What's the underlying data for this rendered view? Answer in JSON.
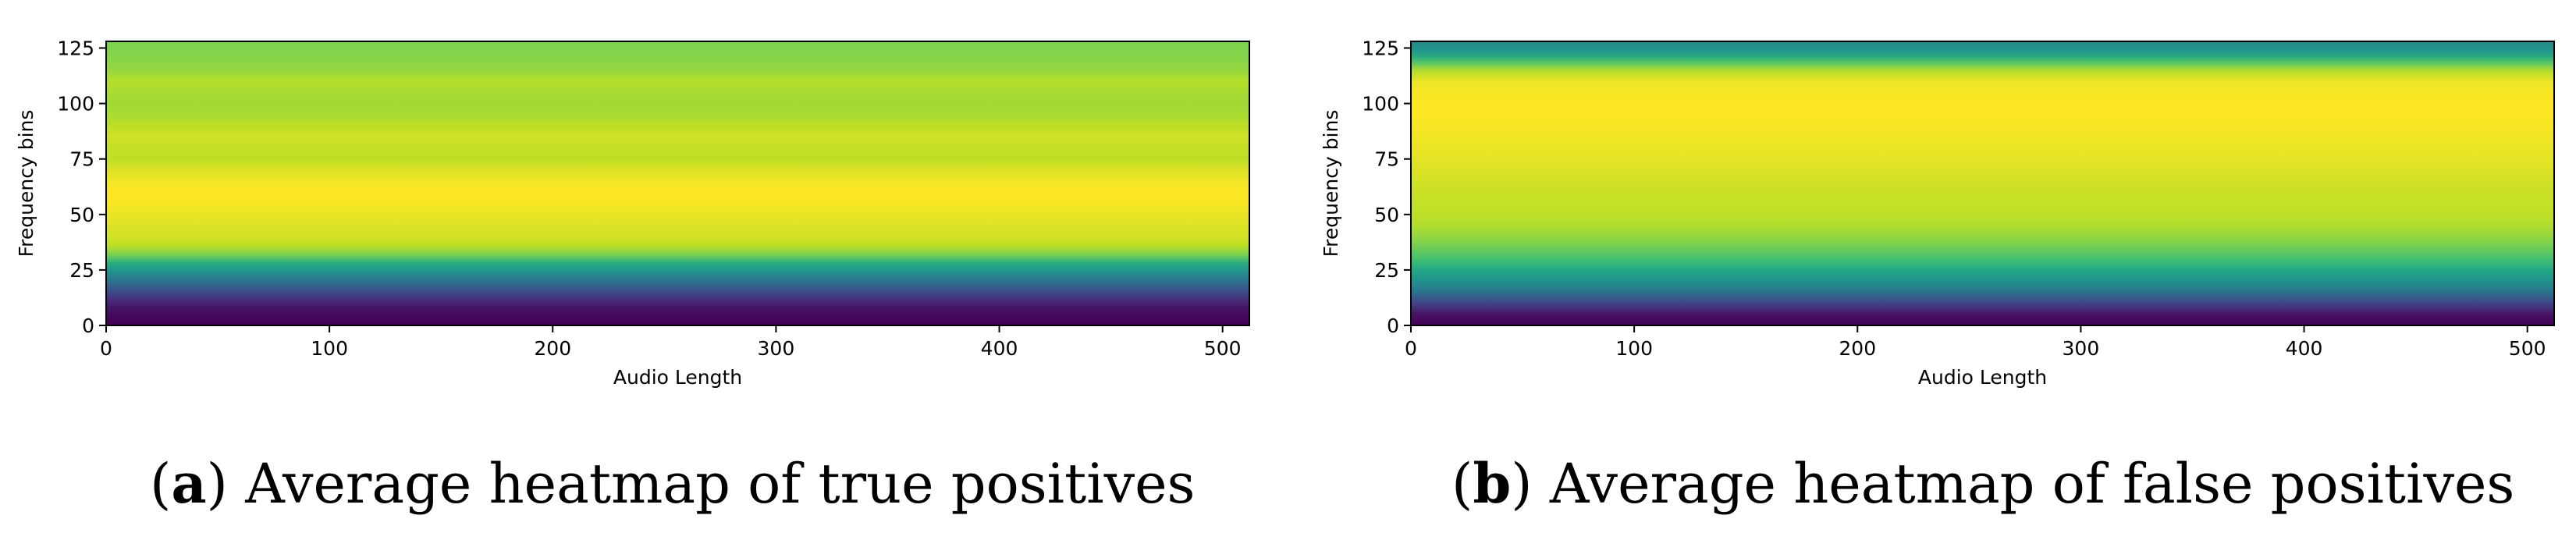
{
  "chart_data": [
    {
      "type": "heatmap",
      "panel_label": "a",
      "caption": "Average heatmap of true positives",
      "xlabel": "Audio Length",
      "ylabel": "Frequency bins",
      "xlim": [
        0,
        512
      ],
      "ylim": [
        0,
        128
      ],
      "xticks": [
        0,
        100,
        200,
        300,
        400,
        500
      ],
      "yticks": [
        0,
        25,
        50,
        75,
        100,
        125
      ],
      "colormap": "viridis",
      "row_profile": {
        "bins": [
          0,
          4,
          8,
          12,
          16,
          20,
          24,
          28,
          32,
          36,
          40,
          45,
          50,
          55,
          60,
          65,
          70,
          75,
          80,
          85,
          90,
          95,
          100,
          105,
          110,
          115,
          120,
          128
        ],
        "normalized_intensity": [
          0.0,
          0.02,
          0.06,
          0.14,
          0.26,
          0.38,
          0.5,
          0.62,
          0.8,
          0.9,
          0.93,
          0.95,
          0.97,
          0.99,
          1.0,
          0.98,
          0.95,
          0.9,
          0.91,
          0.93,
          0.9,
          0.87,
          0.86,
          0.87,
          0.89,
          0.84,
          0.82,
          0.8
        ]
      }
    },
    {
      "type": "heatmap",
      "panel_label": "b",
      "caption": "Average heatmap of false positives",
      "xlabel": "Audio Length",
      "ylabel": "Frequency bins",
      "xlim": [
        0,
        512
      ],
      "ylim": [
        0,
        128
      ],
      "xticks": [
        0,
        100,
        200,
        300,
        400,
        500
      ],
      "yticks": [
        0,
        25,
        50,
        75,
        100,
        125
      ],
      "colormap": "viridis",
      "row_profile": {
        "bins": [
          0,
          5,
          10,
          15,
          20,
          25,
          30,
          35,
          40,
          45,
          50,
          55,
          60,
          65,
          70,
          75,
          80,
          85,
          90,
          95,
          100,
          105,
          110,
          115,
          118,
          121,
          124,
          128
        ],
        "normalized_intensity": [
          0.0,
          0.05,
          0.2,
          0.38,
          0.5,
          0.6,
          0.7,
          0.78,
          0.84,
          0.88,
          0.9,
          0.91,
          0.92,
          0.93,
          0.95,
          0.96,
          0.97,
          0.98,
          0.99,
          1.0,
          1.0,
          0.99,
          0.97,
          0.88,
          0.75,
          0.62,
          0.52,
          0.45
        ]
      }
    }
  ]
}
